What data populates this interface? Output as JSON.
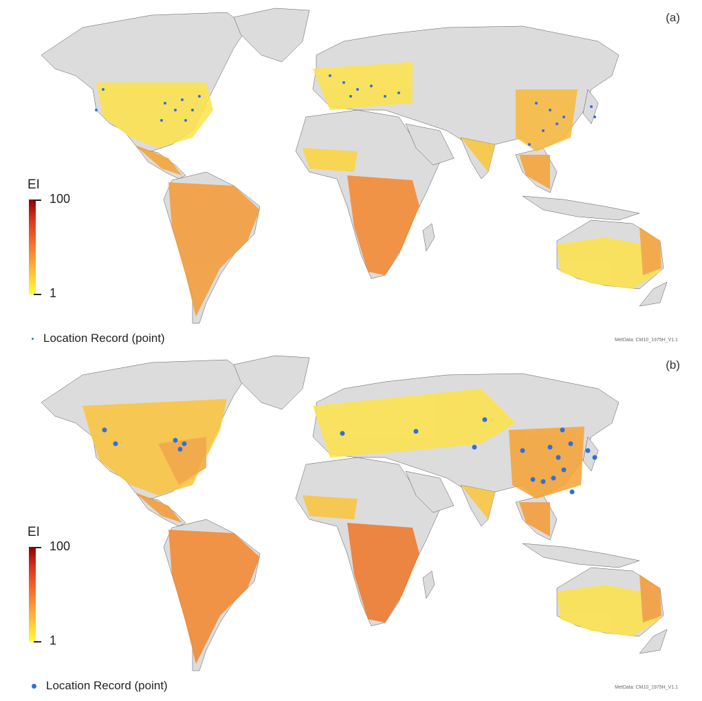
{
  "colors": {
    "ocean": "#ffffff",
    "land": "#dcdcdc",
    "border": "#555555",
    "record": "#2f6fde"
  },
  "colorbar": {
    "max": 100,
    "min": 1,
    "colors": [
      "#8b0000",
      "#d7301f",
      "#f46d2c",
      "#fbb33a",
      "#ffff33"
    ]
  },
  "panels": [
    {
      "label": "(a)",
      "ei_title": "EI",
      "cb_max": "100",
      "cb_min": "1",
      "legend_label": "Location Record (point)",
      "metdata": "MetData: CM10_1975H_V1.1",
      "legend_marker": "small-dot"
    },
    {
      "label": "(b)",
      "ei_title": "EI",
      "cb_max": "100",
      "cb_min": "1",
      "legend_label": "Location Record (point)",
      "metdata": "MetData: CM10_1975H_V1.1",
      "legend_marker": "large-dot"
    }
  ]
}
